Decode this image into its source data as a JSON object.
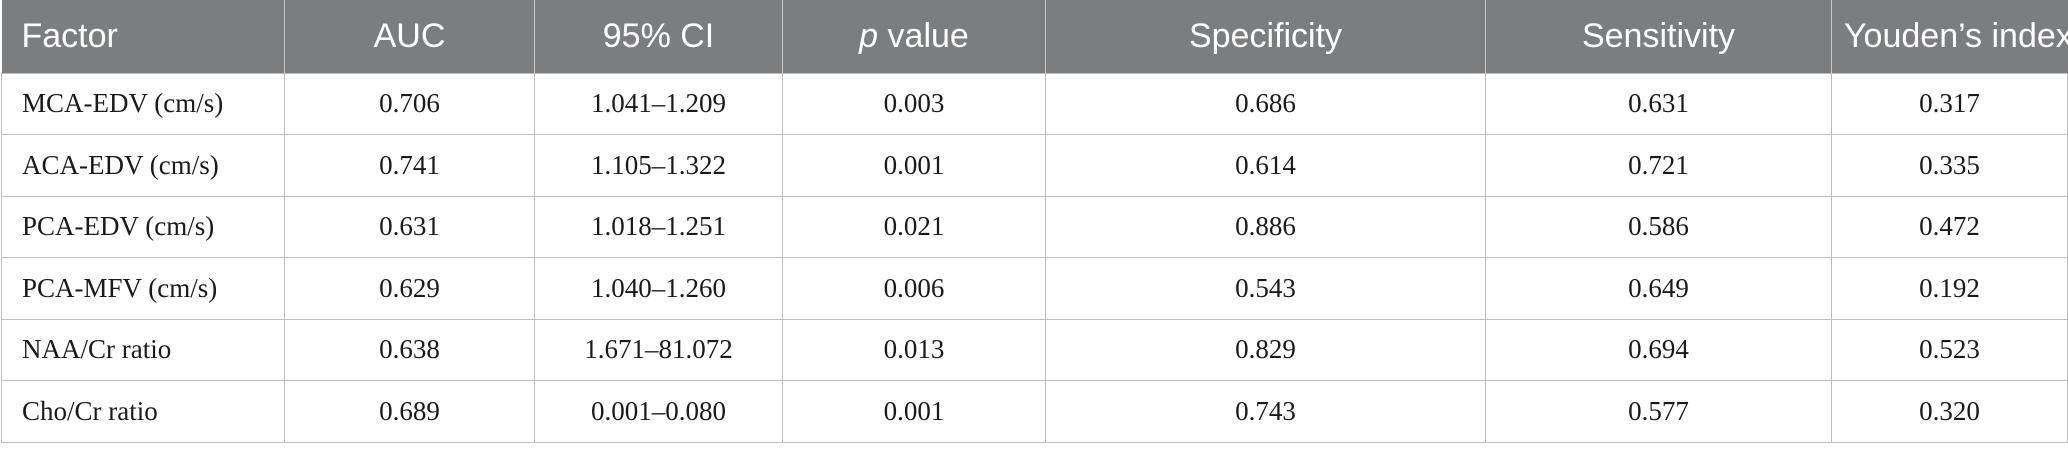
{
  "table": {
    "headers": {
      "factor": "Factor",
      "auc": "AUC",
      "ci": "95% CI",
      "p_italic": "p",
      "p_rest": " value",
      "specificity": "Specificity",
      "sensitivity": "Sensitivity",
      "youden": "Youden’s index"
    },
    "rows": [
      [
        "MCA-EDV (cm/s)",
        "0.706",
        "1.041–1.209",
        "0.003",
        "0.686",
        "0.631",
        "0.317"
      ],
      [
        "ACA-EDV (cm/s)",
        "0.741",
        "1.105–1.322",
        "0.001",
        "0.614",
        "0.721",
        "0.335"
      ],
      [
        "PCA-EDV (cm/s)",
        "0.631",
        "1.018–1.251",
        "0.021",
        "0.886",
        "0.586",
        "0.472"
      ],
      [
        "PCA-MFV (cm/s)",
        "0.629",
        "1.040–1.260",
        "0.006",
        "0.543",
        "0.649",
        "0.192"
      ],
      [
        "NAA/Cr ratio",
        "0.638",
        "1.671–81.072",
        "0.013",
        "0.829",
        "0.694",
        "0.523"
      ],
      [
        "Cho/Cr ratio",
        "0.689",
        "0.001–0.080",
        "0.001",
        "0.743",
        "0.577",
        "0.320"
      ]
    ]
  },
  "colors": {
    "header_bg": "#7c7d7f",
    "header_text": "#ffffff",
    "border": "#bdbdbd"
  }
}
